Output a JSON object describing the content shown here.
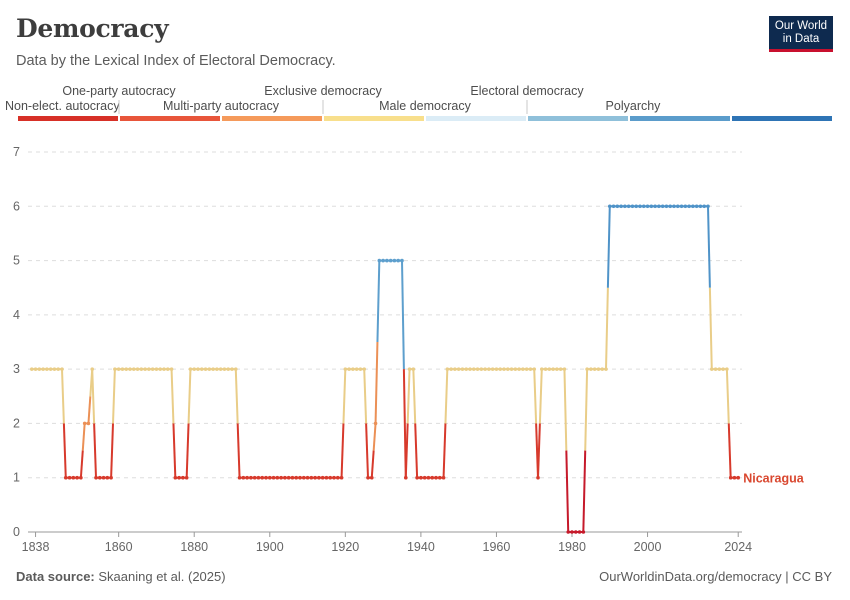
{
  "header": {
    "title": "Democracy",
    "subtitle": "Data by the Lexical Index of Electoral Democracy."
  },
  "logo": {
    "line1": "Our World",
    "line2": "in Data"
  },
  "footer": {
    "source_label": "Data source:",
    "source_text": "Skaaning et al. (2025)",
    "url": "OurWorldinData.org/democracy | CC BY"
  },
  "chart_data": {
    "type": "line",
    "title": "Democracy",
    "subtitle": "Data by the Lexical Index of Electoral Democracy.",
    "xlabel": "",
    "ylabel": "",
    "xlim": [
      1836,
      2025
    ],
    "ylim": [
      0,
      7
    ],
    "y_ticks": [
      0,
      1,
      2,
      3,
      4,
      5,
      6,
      7
    ],
    "x_tick_labels": [
      "1838",
      "1860",
      "1880",
      "1900",
      "1920",
      "1940",
      "1960",
      "1980",
      "2000",
      "2024"
    ],
    "x_tick_values": [
      1838,
      1860,
      1880,
      1900,
      1920,
      1940,
      1960,
      1980,
      2000,
      2024
    ],
    "grid": "horizontal dashed",
    "legend": {
      "placement": "top",
      "categories": [
        {
          "label": "Non-elect. autocracy",
          "color": "#d73027"
        },
        {
          "label": "One-party autocracy",
          "color": "#e8553a"
        },
        {
          "label": "Multi-party autocracy",
          "color": "#f59a5b"
        },
        {
          "label": "Exclusive democracy",
          "color": "#f8df8c"
        },
        {
          "label": "Male democracy",
          "color": "#dbecf6"
        },
        {
          "label": "Electoral democracy",
          "color": "#8fc0da"
        },
        {
          "label": "Polyarchy",
          "color": "#5b9ccb"
        },
        {
          "label": "",
          "color": "#2e74b5"
        }
      ]
    },
    "series": [
      {
        "name": "Nicaragua",
        "color": "#d9472f",
        "points": [
          [
            1837,
            3
          ],
          [
            1838,
            3
          ],
          [
            1839,
            3
          ],
          [
            1840,
            3
          ],
          [
            1841,
            3
          ],
          [
            1842,
            3
          ],
          [
            1843,
            3
          ],
          [
            1844,
            3
          ],
          [
            1845,
            3
          ],
          [
            1846,
            1
          ],
          [
            1847,
            1
          ],
          [
            1848,
            1
          ],
          [
            1849,
            1
          ],
          [
            1850,
            1
          ],
          [
            1851,
            2
          ],
          [
            1852,
            2
          ],
          [
            1853,
            3
          ],
          [
            1854,
            1
          ],
          [
            1855,
            1
          ],
          [
            1856,
            1
          ],
          [
            1857,
            1
          ],
          [
            1858,
            1
          ],
          [
            1859,
            3
          ],
          [
            1860,
            3
          ],
          [
            1861,
            3
          ],
          [
            1862,
            3
          ],
          [
            1863,
            3
          ],
          [
            1864,
            3
          ],
          [
            1865,
            3
          ],
          [
            1866,
            3
          ],
          [
            1867,
            3
          ],
          [
            1868,
            3
          ],
          [
            1869,
            3
          ],
          [
            1870,
            3
          ],
          [
            1871,
            3
          ],
          [
            1872,
            3
          ],
          [
            1873,
            3
          ],
          [
            1874,
            3
          ],
          [
            1875,
            1
          ],
          [
            1876,
            1
          ],
          [
            1877,
            1
          ],
          [
            1878,
            1
          ],
          [
            1879,
            3
          ],
          [
            1880,
            3
          ],
          [
            1881,
            3
          ],
          [
            1882,
            3
          ],
          [
            1883,
            3
          ],
          [
            1884,
            3
          ],
          [
            1885,
            3
          ],
          [
            1886,
            3
          ],
          [
            1887,
            3
          ],
          [
            1888,
            3
          ],
          [
            1889,
            3
          ],
          [
            1890,
            3
          ],
          [
            1891,
            3
          ],
          [
            1892,
            1
          ],
          [
            1893,
            1
          ],
          [
            1894,
            1
          ],
          [
            1895,
            1
          ],
          [
            1896,
            1
          ],
          [
            1897,
            1
          ],
          [
            1898,
            1
          ],
          [
            1899,
            1
          ],
          [
            1900,
            1
          ],
          [
            1901,
            1
          ],
          [
            1902,
            1
          ],
          [
            1903,
            1
          ],
          [
            1904,
            1
          ],
          [
            1905,
            1
          ],
          [
            1906,
            1
          ],
          [
            1907,
            1
          ],
          [
            1908,
            1
          ],
          [
            1909,
            1
          ],
          [
            1910,
            1
          ],
          [
            1911,
            1
          ],
          [
            1912,
            1
          ],
          [
            1913,
            1
          ],
          [
            1914,
            1
          ],
          [
            1915,
            1
          ],
          [
            1916,
            1
          ],
          [
            1917,
            1
          ],
          [
            1918,
            1
          ],
          [
            1919,
            1
          ],
          [
            1920,
            3
          ],
          [
            1921,
            3
          ],
          [
            1922,
            3
          ],
          [
            1923,
            3
          ],
          [
            1924,
            3
          ],
          [
            1925,
            3
          ],
          [
            1926,
            1
          ],
          [
            1927,
            1
          ],
          [
            1928,
            2
          ],
          [
            1929,
            5
          ],
          [
            1930,
            5
          ],
          [
            1931,
            5
          ],
          [
            1932,
            5
          ],
          [
            1933,
            5
          ],
          [
            1934,
            5
          ],
          [
            1935,
            5
          ],
          [
            1936,
            1
          ],
          [
            1937,
            3
          ],
          [
            1938,
            3
          ],
          [
            1939,
            1
          ],
          [
            1940,
            1
          ],
          [
            1941,
            1
          ],
          [
            1942,
            1
          ],
          [
            1943,
            1
          ],
          [
            1944,
            1
          ],
          [
            1945,
            1
          ],
          [
            1946,
            1
          ],
          [
            1947,
            3
          ],
          [
            1948,
            3
          ],
          [
            1949,
            3
          ],
          [
            1950,
            3
          ],
          [
            1951,
            3
          ],
          [
            1952,
            3
          ],
          [
            1953,
            3
          ],
          [
            1954,
            3
          ],
          [
            1955,
            3
          ],
          [
            1956,
            3
          ],
          [
            1957,
            3
          ],
          [
            1958,
            3
          ],
          [
            1959,
            3
          ],
          [
            1960,
            3
          ],
          [
            1961,
            3
          ],
          [
            1962,
            3
          ],
          [
            1963,
            3
          ],
          [
            1964,
            3
          ],
          [
            1965,
            3
          ],
          [
            1966,
            3
          ],
          [
            1967,
            3
          ],
          [
            1968,
            3
          ],
          [
            1969,
            3
          ],
          [
            1970,
            3
          ],
          [
            1971,
            1
          ],
          [
            1972,
            3
          ],
          [
            1973,
            3
          ],
          [
            1974,
            3
          ],
          [
            1975,
            3
          ],
          [
            1976,
            3
          ],
          [
            1977,
            3
          ],
          [
            1978,
            3
          ],
          [
            1979,
            0
          ],
          [
            1980,
            0
          ],
          [
            1981,
            0
          ],
          [
            1982,
            0
          ],
          [
            1983,
            0
          ],
          [
            1984,
            3
          ],
          [
            1985,
            3
          ],
          [
            1986,
            3
          ],
          [
            1987,
            3
          ],
          [
            1988,
            3
          ],
          [
            1989,
            3
          ],
          [
            1990,
            6
          ],
          [
            1991,
            6
          ],
          [
            1992,
            6
          ],
          [
            1993,
            6
          ],
          [
            1994,
            6
          ],
          [
            1995,
            6
          ],
          [
            1996,
            6
          ],
          [
            1997,
            6
          ],
          [
            1998,
            6
          ],
          [
            1999,
            6
          ],
          [
            2000,
            6
          ],
          [
            2001,
            6
          ],
          [
            2002,
            6
          ],
          [
            2003,
            6
          ],
          [
            2004,
            6
          ],
          [
            2005,
            6
          ],
          [
            2006,
            6
          ],
          [
            2007,
            6
          ],
          [
            2008,
            6
          ],
          [
            2009,
            6
          ],
          [
            2010,
            6
          ],
          [
            2011,
            6
          ],
          [
            2012,
            6
          ],
          [
            2013,
            6
          ],
          [
            2014,
            6
          ],
          [
            2015,
            6
          ],
          [
            2016,
            6
          ],
          [
            2017,
            3
          ],
          [
            2018,
            3
          ],
          [
            2019,
            3
          ],
          [
            2020,
            3
          ],
          [
            2021,
            3
          ],
          [
            2022,
            1
          ],
          [
            2023,
            1
          ],
          [
            2024,
            1
          ]
        ]
      }
    ],
    "level_colors": [
      "#c61a2b",
      "#d73a2c",
      "#eb9056",
      "#e9cd88",
      "#8cbcd8",
      "#5d9fcd",
      "#4f93c8",
      "#2c6aa6"
    ]
  }
}
